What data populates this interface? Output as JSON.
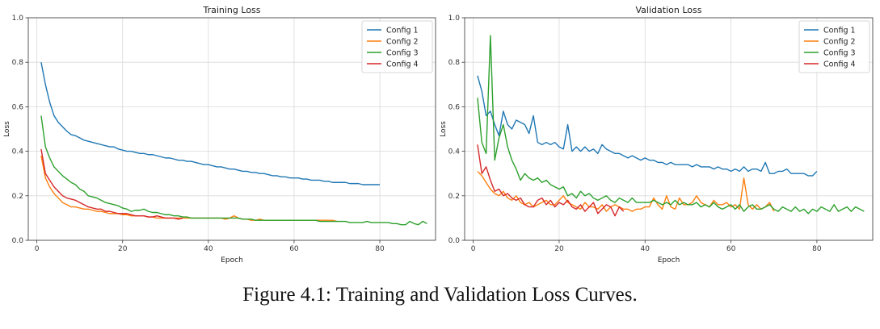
{
  "caption": "Figure 4.1: Training and Validation Loss Curves.",
  "chart_data": [
    {
      "type": "line",
      "title": "Training Loss",
      "xlabel": "Epoch",
      "ylabel": "Loss",
      "xlim": [
        -2,
        93
      ],
      "ylim": [
        0,
        1.0
      ],
      "xticks": [
        0,
        20,
        40,
        60,
        80
      ],
      "yticks": [
        0.0,
        0.2,
        0.4,
        0.6,
        0.8,
        1.0
      ],
      "grid": true,
      "legend": "top-right",
      "series": [
        {
          "name": "Config 1",
          "color": "#1f77b4",
          "x_start": 1,
          "values": [
            0.8,
            0.7,
            0.62,
            0.56,
            0.53,
            0.51,
            0.49,
            0.475,
            0.47,
            0.46,
            0.45,
            0.445,
            0.44,
            0.435,
            0.43,
            0.425,
            0.42,
            0.42,
            0.41,
            0.405,
            0.4,
            0.4,
            0.395,
            0.39,
            0.39,
            0.385,
            0.385,
            0.38,
            0.375,
            0.37,
            0.37,
            0.365,
            0.36,
            0.36,
            0.355,
            0.355,
            0.35,
            0.345,
            0.34,
            0.34,
            0.335,
            0.33,
            0.33,
            0.325,
            0.32,
            0.32,
            0.315,
            0.31,
            0.31,
            0.305,
            0.305,
            0.3,
            0.3,
            0.295,
            0.29,
            0.29,
            0.285,
            0.285,
            0.28,
            0.28,
            0.28,
            0.275,
            0.275,
            0.27,
            0.27,
            0.27,
            0.265,
            0.265,
            0.26,
            0.26,
            0.26,
            0.26,
            0.255,
            0.255,
            0.255,
            0.25,
            0.25,
            0.25,
            0.25,
            0.25
          ]
        },
        {
          "name": "Config 2",
          "color": "#ff7f0e",
          "x_start": 1,
          "values": [
            0.38,
            0.28,
            0.24,
            0.21,
            0.19,
            0.17,
            0.16,
            0.15,
            0.15,
            0.145,
            0.14,
            0.14,
            0.135,
            0.13,
            0.13,
            0.125,
            0.12,
            0.12,
            0.12,
            0.115,
            0.115,
            0.11,
            0.11,
            0.11,
            0.11,
            0.105,
            0.105,
            0.1,
            0.1,
            0.1,
            0.1,
            0.1,
            0.1,
            0.1,
            0.1,
            0.1,
            0.1,
            0.1,
            0.1,
            0.1,
            0.1,
            0.1,
            0.1,
            0.095,
            0.1,
            0.11,
            0.1,
            0.095,
            0.095,
            0.09,
            0.09,
            0.095,
            0.09,
            0.09,
            0.09,
            0.09,
            0.09,
            0.09,
            0.09,
            0.09,
            0.09,
            0.09,
            0.09,
            0.09,
            0.09,
            0.09,
            0.09,
            0.09,
            0.09,
            0.085
          ]
        },
        {
          "name": "Config 3",
          "color": "#2ca02c",
          "x_start": 1,
          "values": [
            0.56,
            0.42,
            0.37,
            0.33,
            0.31,
            0.29,
            0.275,
            0.26,
            0.25,
            0.23,
            0.22,
            0.2,
            0.195,
            0.19,
            0.18,
            0.17,
            0.165,
            0.16,
            0.155,
            0.145,
            0.14,
            0.13,
            0.135,
            0.135,
            0.14,
            0.13,
            0.125,
            0.125,
            0.12,
            0.115,
            0.115,
            0.11,
            0.11,
            0.105,
            0.105,
            0.1,
            0.1,
            0.1,
            0.1,
            0.1,
            0.1,
            0.1,
            0.1,
            0.1,
            0.1,
            0.1,
            0.1,
            0.095,
            0.095,
            0.095,
            0.09,
            0.09,
            0.09,
            0.09,
            0.09,
            0.09,
            0.09,
            0.09,
            0.09,
            0.09,
            0.09,
            0.09,
            0.09,
            0.09,
            0.09,
            0.085,
            0.085,
            0.085,
            0.085,
            0.085,
            0.085,
            0.085,
            0.08,
            0.08,
            0.08,
            0.08,
            0.085,
            0.08,
            0.08,
            0.08,
            0.08,
            0.08,
            0.075,
            0.075,
            0.07,
            0.07,
            0.085,
            0.075,
            0.07,
            0.085,
            0.075
          ]
        },
        {
          "name": "Config 4",
          "color": "#d62728",
          "x_start": 1,
          "values": [
            0.41,
            0.3,
            0.27,
            0.24,
            0.22,
            0.2,
            0.19,
            0.185,
            0.18,
            0.17,
            0.16,
            0.15,
            0.145,
            0.14,
            0.14,
            0.13,
            0.13,
            0.125,
            0.12,
            0.12,
            0.12,
            0.115,
            0.11,
            0.11,
            0.11,
            0.105,
            0.105,
            0.11,
            0.105,
            0.1,
            0.1,
            0.1,
            0.095,
            0.1
          ]
        }
      ]
    },
    {
      "type": "line",
      "title": "Validation Loss",
      "xlabel": "Epoch",
      "ylabel": "Loss",
      "xlim": [
        -2,
        93
      ],
      "ylim": [
        0,
        1.0
      ],
      "xticks": [
        0,
        20,
        40,
        60,
        80
      ],
      "yticks": [
        0.0,
        0.2,
        0.4,
        0.6,
        0.8,
        1.0
      ],
      "grid": true,
      "legend": "top-right",
      "series": [
        {
          "name": "Config 1",
          "color": "#1f77b4",
          "x_start": 1,
          "values": [
            0.74,
            0.67,
            0.56,
            0.58,
            0.52,
            0.47,
            0.58,
            0.52,
            0.5,
            0.54,
            0.53,
            0.52,
            0.48,
            0.56,
            0.44,
            0.43,
            0.44,
            0.43,
            0.44,
            0.42,
            0.41,
            0.52,
            0.4,
            0.42,
            0.4,
            0.42,
            0.4,
            0.41,
            0.39,
            0.43,
            0.41,
            0.4,
            0.39,
            0.39,
            0.38,
            0.37,
            0.38,
            0.37,
            0.36,
            0.37,
            0.36,
            0.36,
            0.35,
            0.35,
            0.34,
            0.35,
            0.34,
            0.34,
            0.34,
            0.34,
            0.33,
            0.34,
            0.33,
            0.33,
            0.33,
            0.32,
            0.33,
            0.32,
            0.32,
            0.31,
            0.32,
            0.31,
            0.33,
            0.31,
            0.32,
            0.32,
            0.31,
            0.35,
            0.3,
            0.3,
            0.31,
            0.31,
            0.32,
            0.3,
            0.3,
            0.3,
            0.3,
            0.29,
            0.29,
            0.31
          ]
        },
        {
          "name": "Config 2",
          "color": "#ff7f0e",
          "x_start": 1,
          "values": [
            0.31,
            0.29,
            0.26,
            0.23,
            0.21,
            0.2,
            0.22,
            0.19,
            0.18,
            0.2,
            0.17,
            0.16,
            0.17,
            0.15,
            0.16,
            0.17,
            0.18,
            0.16,
            0.16,
            0.18,
            0.2,
            0.17,
            0.16,
            0.15,
            0.14,
            0.17,
            0.15,
            0.15,
            0.14,
            0.16,
            0.13,
            0.15,
            0.16,
            0.15,
            0.14,
            0.14,
            0.13,
            0.14,
            0.14,
            0.15,
            0.15,
            0.19,
            0.16,
            0.14,
            0.2,
            0.15,
            0.14,
            0.19,
            0.16,
            0.16,
            0.17,
            0.2,
            0.17,
            0.16,
            0.15,
            0.18,
            0.16,
            0.16,
            0.17,
            0.15,
            0.16,
            0.14,
            0.28,
            0.16,
            0.14,
            0.16,
            0.14,
            0.15,
            0.17,
            0.13
          ]
        },
        {
          "name": "Config 3",
          "color": "#2ca02c",
          "x_start": 1,
          "values": [
            0.64,
            0.44,
            0.39,
            0.92,
            0.36,
            0.46,
            0.52,
            0.42,
            0.36,
            0.32,
            0.27,
            0.3,
            0.28,
            0.27,
            0.28,
            0.26,
            0.27,
            0.25,
            0.24,
            0.23,
            0.24,
            0.2,
            0.21,
            0.19,
            0.22,
            0.2,
            0.21,
            0.19,
            0.18,
            0.19,
            0.2,
            0.18,
            0.17,
            0.19,
            0.18,
            0.17,
            0.19,
            0.17,
            0.17,
            0.17,
            0.17,
            0.18,
            0.17,
            0.16,
            0.17,
            0.16,
            0.18,
            0.16,
            0.17,
            0.16,
            0.16,
            0.17,
            0.15,
            0.16,
            0.15,
            0.17,
            0.15,
            0.14,
            0.15,
            0.16,
            0.14,
            0.16,
            0.13,
            0.15,
            0.16,
            0.14,
            0.14,
            0.15,
            0.16,
            0.14,
            0.13,
            0.15,
            0.14,
            0.13,
            0.15,
            0.13,
            0.14,
            0.12,
            0.14,
            0.13,
            0.15,
            0.14,
            0.13,
            0.16,
            0.13,
            0.14,
            0.15,
            0.13,
            0.15,
            0.14,
            0.13
          ]
        },
        {
          "name": "Config 4",
          "color": "#d62728",
          "x_start": 1,
          "values": [
            0.43,
            0.3,
            0.33,
            0.27,
            0.22,
            0.23,
            0.2,
            0.21,
            0.19,
            0.18,
            0.19,
            0.16,
            0.15,
            0.15,
            0.18,
            0.19,
            0.16,
            0.18,
            0.15,
            0.17,
            0.16,
            0.18,
            0.15,
            0.14,
            0.16,
            0.13,
            0.15,
            0.17,
            0.12,
            0.14,
            0.16,
            0.15,
            0.11,
            0.15,
            0.13
          ]
        }
      ]
    }
  ]
}
